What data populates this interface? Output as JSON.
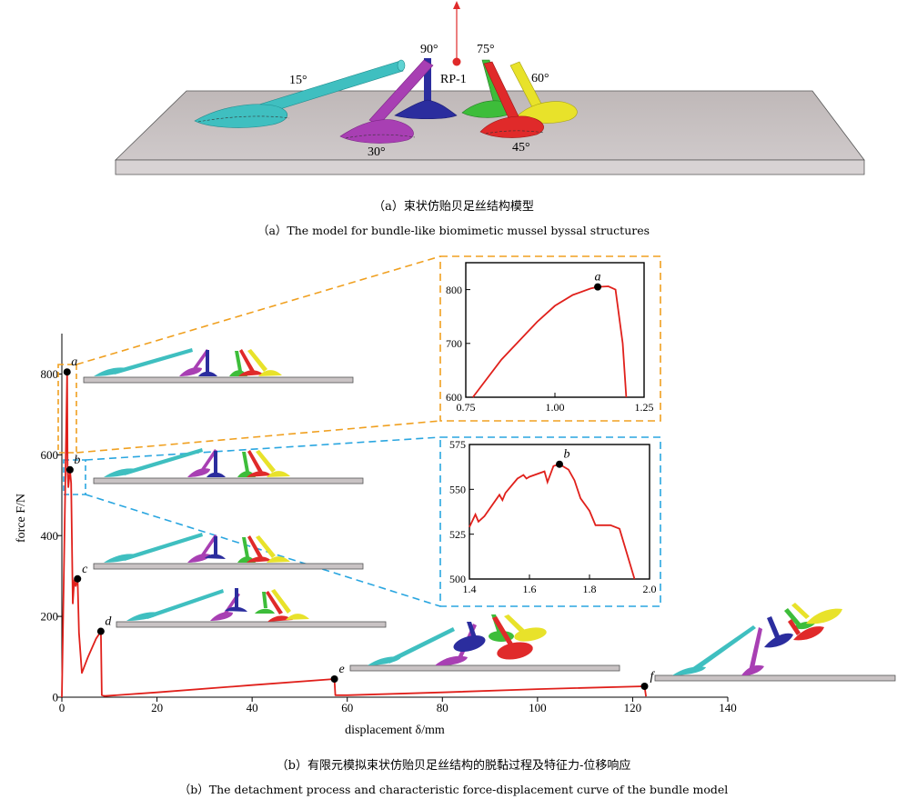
{
  "part_a": {
    "angle_labels": [
      "15°",
      "90°",
      "75°",
      "60°",
      "30°",
      "45°"
    ],
    "rp_label": "RP-1",
    "caption_cn": "（a）束状仿贻贝足丝结构模型",
    "caption_en": "（a）The model for bundle-like biomimetic mussel byssal structures"
  },
  "part_b": {
    "caption_cn": "（b）有限元模拟束状仿贻贝足丝结构的脱黏过程及特征力-位移响应",
    "caption_en": "（b）The detachment process and characteristic force-displacement curve of the bundle model"
  },
  "colors": {
    "curve": "#e0201b",
    "zoom_orange": "#f0a020",
    "zoom_blue": "#2aa6e0",
    "plate": "#c9c3c4",
    "cyan": "#3fbfc0",
    "purple": "#a83fb3",
    "blue": "#2b2d9e",
    "green": "#3dbd3a",
    "yellow": "#e8e22a",
    "red": "#e02a2a"
  },
  "chart_data": [
    {
      "type": "line",
      "xlabel": "displacement δ/mm",
      "ylabel": "force F/N",
      "xlim": [
        0,
        140
      ],
      "ylim": [
        0,
        900
      ],
      "xticks": [
        0,
        20,
        40,
        60,
        80,
        100,
        120,
        140
      ],
      "yticks": [
        0,
        200,
        400,
        600,
        800
      ],
      "points": [
        {
          "label": "a",
          "x": 1.1,
          "y": 805
        },
        {
          "label": "b",
          "x": 1.7,
          "y": 563
        },
        {
          "label": "c",
          "x": 3.3,
          "y": 293
        },
        {
          "label": "d",
          "x": 8.2,
          "y": 163
        },
        {
          "label": "e",
          "x": 57.3,
          "y": 45
        },
        {
          "label": "f",
          "x": 122.5,
          "y": 27
        }
      ],
      "series": [
        {
          "x": [
            0,
            1.1,
            1.2,
            1.35,
            1.7,
            1.95,
            2.3,
            2.6,
            2.9,
            3.3,
            3.6,
            4.2,
            5.5,
            7.2,
            8.2,
            8.4,
            9,
            20,
            40,
            57.3,
            57.5,
            60,
            80,
            100,
            122.5,
            122.8
          ],
          "y": [
            0,
            805,
            560,
            520,
            563,
            530,
            232,
            290,
            275,
            293,
            160,
            60,
            100,
            145,
            163,
            5,
            3,
            12,
            30,
            45,
            5,
            5,
            12,
            20,
            27,
            2
          ]
        }
      ]
    },
    {
      "type": "line",
      "xlim": [
        0.75,
        1.25
      ],
      "ylim": [
        600,
        850
      ],
      "xticks": [
        0.75,
        1.0,
        1.25
      ],
      "yticks": [
        600,
        700,
        800
      ],
      "points": [
        {
          "label": "a",
          "x": 1.12,
          "y": 805
        }
      ],
      "series": [
        {
          "x": [
            0.77,
            0.85,
            0.95,
            1.0,
            1.05,
            1.1,
            1.12,
            1.15,
            1.17,
            1.19,
            1.2
          ],
          "y": [
            600,
            670,
            740,
            770,
            790,
            802,
            805,
            806,
            800,
            700,
            600
          ]
        }
      ]
    },
    {
      "type": "line",
      "xlim": [
        1.4,
        2.0
      ],
      "ylim": [
        500,
        575
      ],
      "xticks": [
        1.4,
        1.6,
        1.8,
        2.0
      ],
      "yticks": [
        500,
        525,
        550,
        575
      ],
      "points": [
        {
          "label": "b",
          "x": 1.7,
          "y": 564
        }
      ],
      "series": [
        {
          "x": [
            1.4,
            1.42,
            1.43,
            1.45,
            1.5,
            1.51,
            1.52,
            1.56,
            1.58,
            1.59,
            1.6,
            1.65,
            1.66,
            1.68,
            1.7,
            1.73,
            1.75,
            1.77,
            1.8,
            1.82,
            1.84,
            1.87,
            1.9,
            1.95
          ],
          "y": [
            529,
            536,
            532,
            535,
            547,
            544,
            548,
            556,
            558,
            556,
            557,
            560,
            554,
            563,
            564,
            561,
            555,
            545,
            538,
            530,
            530,
            530,
            528,
            500
          ]
        }
      ]
    }
  ]
}
